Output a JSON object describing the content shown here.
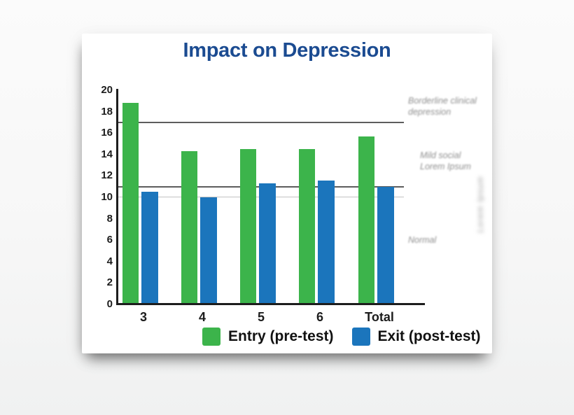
{
  "title": {
    "text": "Impact on Depression",
    "color": "#1b4b91"
  },
  "legend": {
    "items": [
      {
        "label": "Entry (pre-test)",
        "color": "#3cb44b"
      },
      {
        "label": "Exit (post-test)",
        "color": "#1b75bc"
      }
    ]
  },
  "annotations": {
    "side": [
      {
        "id": "borderline",
        "lines": [
          "Borderline clinical",
          "depression"
        ]
      },
      {
        "id": "mild",
        "lines": [
          "Mild social",
          "Lorem Ipsum"
        ]
      },
      {
        "id": "normal",
        "lines": [
          "Normal"
        ]
      }
    ],
    "vertical": {
      "text": "Lorem Ipsum"
    }
  },
  "chart_data": {
    "type": "bar",
    "title": "Impact on Depression",
    "categories": [
      "3",
      "4",
      "5",
      "6",
      "Total"
    ],
    "series": [
      {
        "name": "Entry (pre-test)",
        "color": "#3cb44b",
        "values": [
          18.8,
          14.3,
          14.5,
          14.5,
          15.7
        ]
      },
      {
        "name": "Exit (post-test)",
        "color": "#1b75bc",
        "values": [
          10.5,
          10.0,
          11.3,
          11.6,
          11.0
        ]
      }
    ],
    "xlabel": "",
    "ylabel": "",
    "ylim": [
      0,
      20
    ],
    "ytick_step": 2,
    "grid": false,
    "legend_position": "bottom",
    "reference_lines": [
      {
        "value": 17,
        "style": "dark",
        "zone_label": "Borderline clinical depression"
      },
      {
        "value": 11,
        "style": "dark",
        "zone_label": "Mild social Lorem Ipsum"
      },
      {
        "value": 10,
        "style": "light",
        "zone_label": "Normal"
      }
    ]
  }
}
